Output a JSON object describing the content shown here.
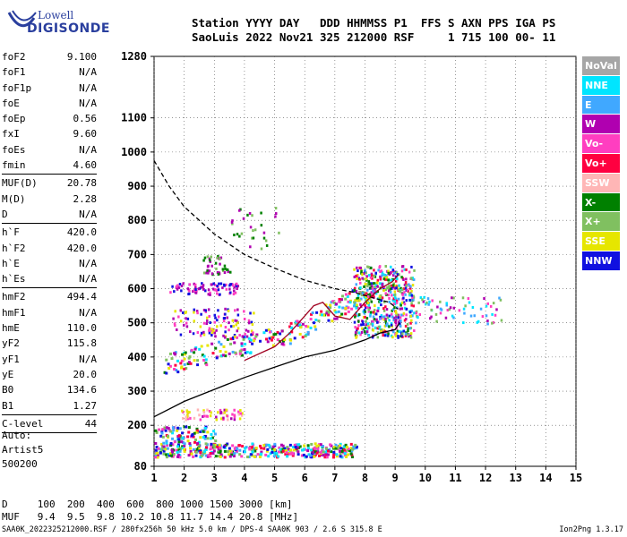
{
  "logo": {
    "line1": "Lowell",
    "line2": "DIGISONDE"
  },
  "header": {
    "line1": "Station YYYY DAY   DDD HHMMSS P1  FFS S AXN PPS IGA PS",
    "line2": "SaoLuis 2022 Nov21 325 212000 RSF     1 715 100 00- 11"
  },
  "params": [
    {
      "k": "foF2",
      "v": "9.100"
    },
    {
      "k": "foF1",
      "v": "N/A"
    },
    {
      "k": "foF1p",
      "v": "N/A"
    },
    {
      "k": "foE",
      "v": "N/A"
    },
    {
      "k": "foEp",
      "v": "0.56"
    },
    {
      "k": "fxI",
      "v": "9.60"
    },
    {
      "k": "foEs",
      "v": "N/A"
    },
    {
      "k": "fmin",
      "v": "4.60"
    },
    {
      "k": "MUF(D)",
      "v": "20.78"
    },
    {
      "k": "M(D)",
      "v": "2.28"
    },
    {
      "k": "D",
      "v": "N/A"
    },
    {
      "k": "h`F",
      "v": "420.0"
    },
    {
      "k": "h`F2",
      "v": "420.0"
    },
    {
      "k": "h`E",
      "v": "N/A"
    },
    {
      "k": "h`Es",
      "v": "N/A"
    },
    {
      "k": "hmF2",
      "v": "494.4"
    },
    {
      "k": "hmF1",
      "v": "N/A"
    },
    {
      "k": "hmE",
      "v": "110.0"
    },
    {
      "k": "yF2",
      "v": "115.8"
    },
    {
      "k": "yF1",
      "v": "N/A"
    },
    {
      "k": "yE",
      "v": "20.0"
    },
    {
      "k": "B0",
      "v": "134.6"
    },
    {
      "k": "B1",
      "v": "1.27"
    },
    {
      "k": "C-level",
      "v": "44"
    }
  ],
  "auto": {
    "l1": "Auto:",
    "l2": "Artist5",
    "l3": "500200"
  },
  "dtable": {
    "row1": "D     100  200  400  600  800 1000 1500 3000 [km]",
    "row2": "MUF   9.4  9.5  9.8 10.2 10.8 11.7 14.4 20.8 [MHz]"
  },
  "footer": "SAA0K_2022325212000.RSF / 280fx256h 50 kHz 5.0 km / DPS-4 SAA0K 903 / 2.6 S 315.8 E",
  "version": "Ion2Png 1.3.17",
  "legend": [
    {
      "label": "NoVal",
      "color": "#a6a6a6"
    },
    {
      "label": "NNE",
      "color": "#00e5ff"
    },
    {
      "label": "E",
      "color": "#40a8ff"
    },
    {
      "label": "W",
      "color": "#b000b0"
    },
    {
      "label": "Vo-",
      "color": "#ff3ec0"
    },
    {
      "label": "Vo+",
      "color": "#ff0040"
    },
    {
      "label": "SSW",
      "color": "#ffb6b6"
    },
    {
      "label": "X-",
      "color": "#008000"
    },
    {
      "label": "X+",
      "color": "#80c060"
    },
    {
      "label": "SSE",
      "color": "#e6e600"
    },
    {
      "label": "NNW",
      "color": "#1010e0"
    }
  ],
  "chart_data": {
    "type": "scatter",
    "title": "",
    "xlabel": "",
    "ylabel": "",
    "xlim": [
      1,
      15
    ],
    "ylim": [
      80,
      1280
    ],
    "xticks": [
      1,
      2,
      3,
      4,
      5,
      6,
      7,
      8,
      9,
      10,
      11,
      12,
      13,
      14,
      15
    ],
    "yticks": [
      80,
      200,
      300,
      400,
      500,
      600,
      700,
      800,
      900,
      1000,
      1100,
      1280
    ],
    "grid": true,
    "series": [
      {
        "kind": "dashed-curve",
        "x": [
          1.0,
          1.5,
          2.0,
          3.0,
          4.0,
          5.0,
          6.0,
          7.0,
          7.6,
          8.2,
          8.8,
          9.1
        ],
        "y": [
          975,
          900,
          840,
          760,
          700,
          660,
          625,
          600,
          590,
          575,
          560,
          540
        ]
      },
      {
        "kind": "solid-lower",
        "x": [
          1.0,
          2.0,
          3.0,
          4.0,
          5.0,
          6.0,
          7.0,
          8.0,
          8.5,
          9.0,
          9.15
        ],
        "y": [
          225,
          270,
          305,
          340,
          370,
          400,
          420,
          450,
          470,
          480,
          500
        ]
      },
      {
        "kind": "solid-trace",
        "x": [
          4.0,
          5.0,
          5.5,
          6.0,
          6.3,
          6.6,
          7.0,
          7.5,
          8.0,
          8.5,
          8.9,
          9.1
        ],
        "y": [
          390,
          430,
          470,
          520,
          550,
          560,
          520,
          510,
          560,
          600,
          620,
          640
        ]
      }
    ]
  }
}
